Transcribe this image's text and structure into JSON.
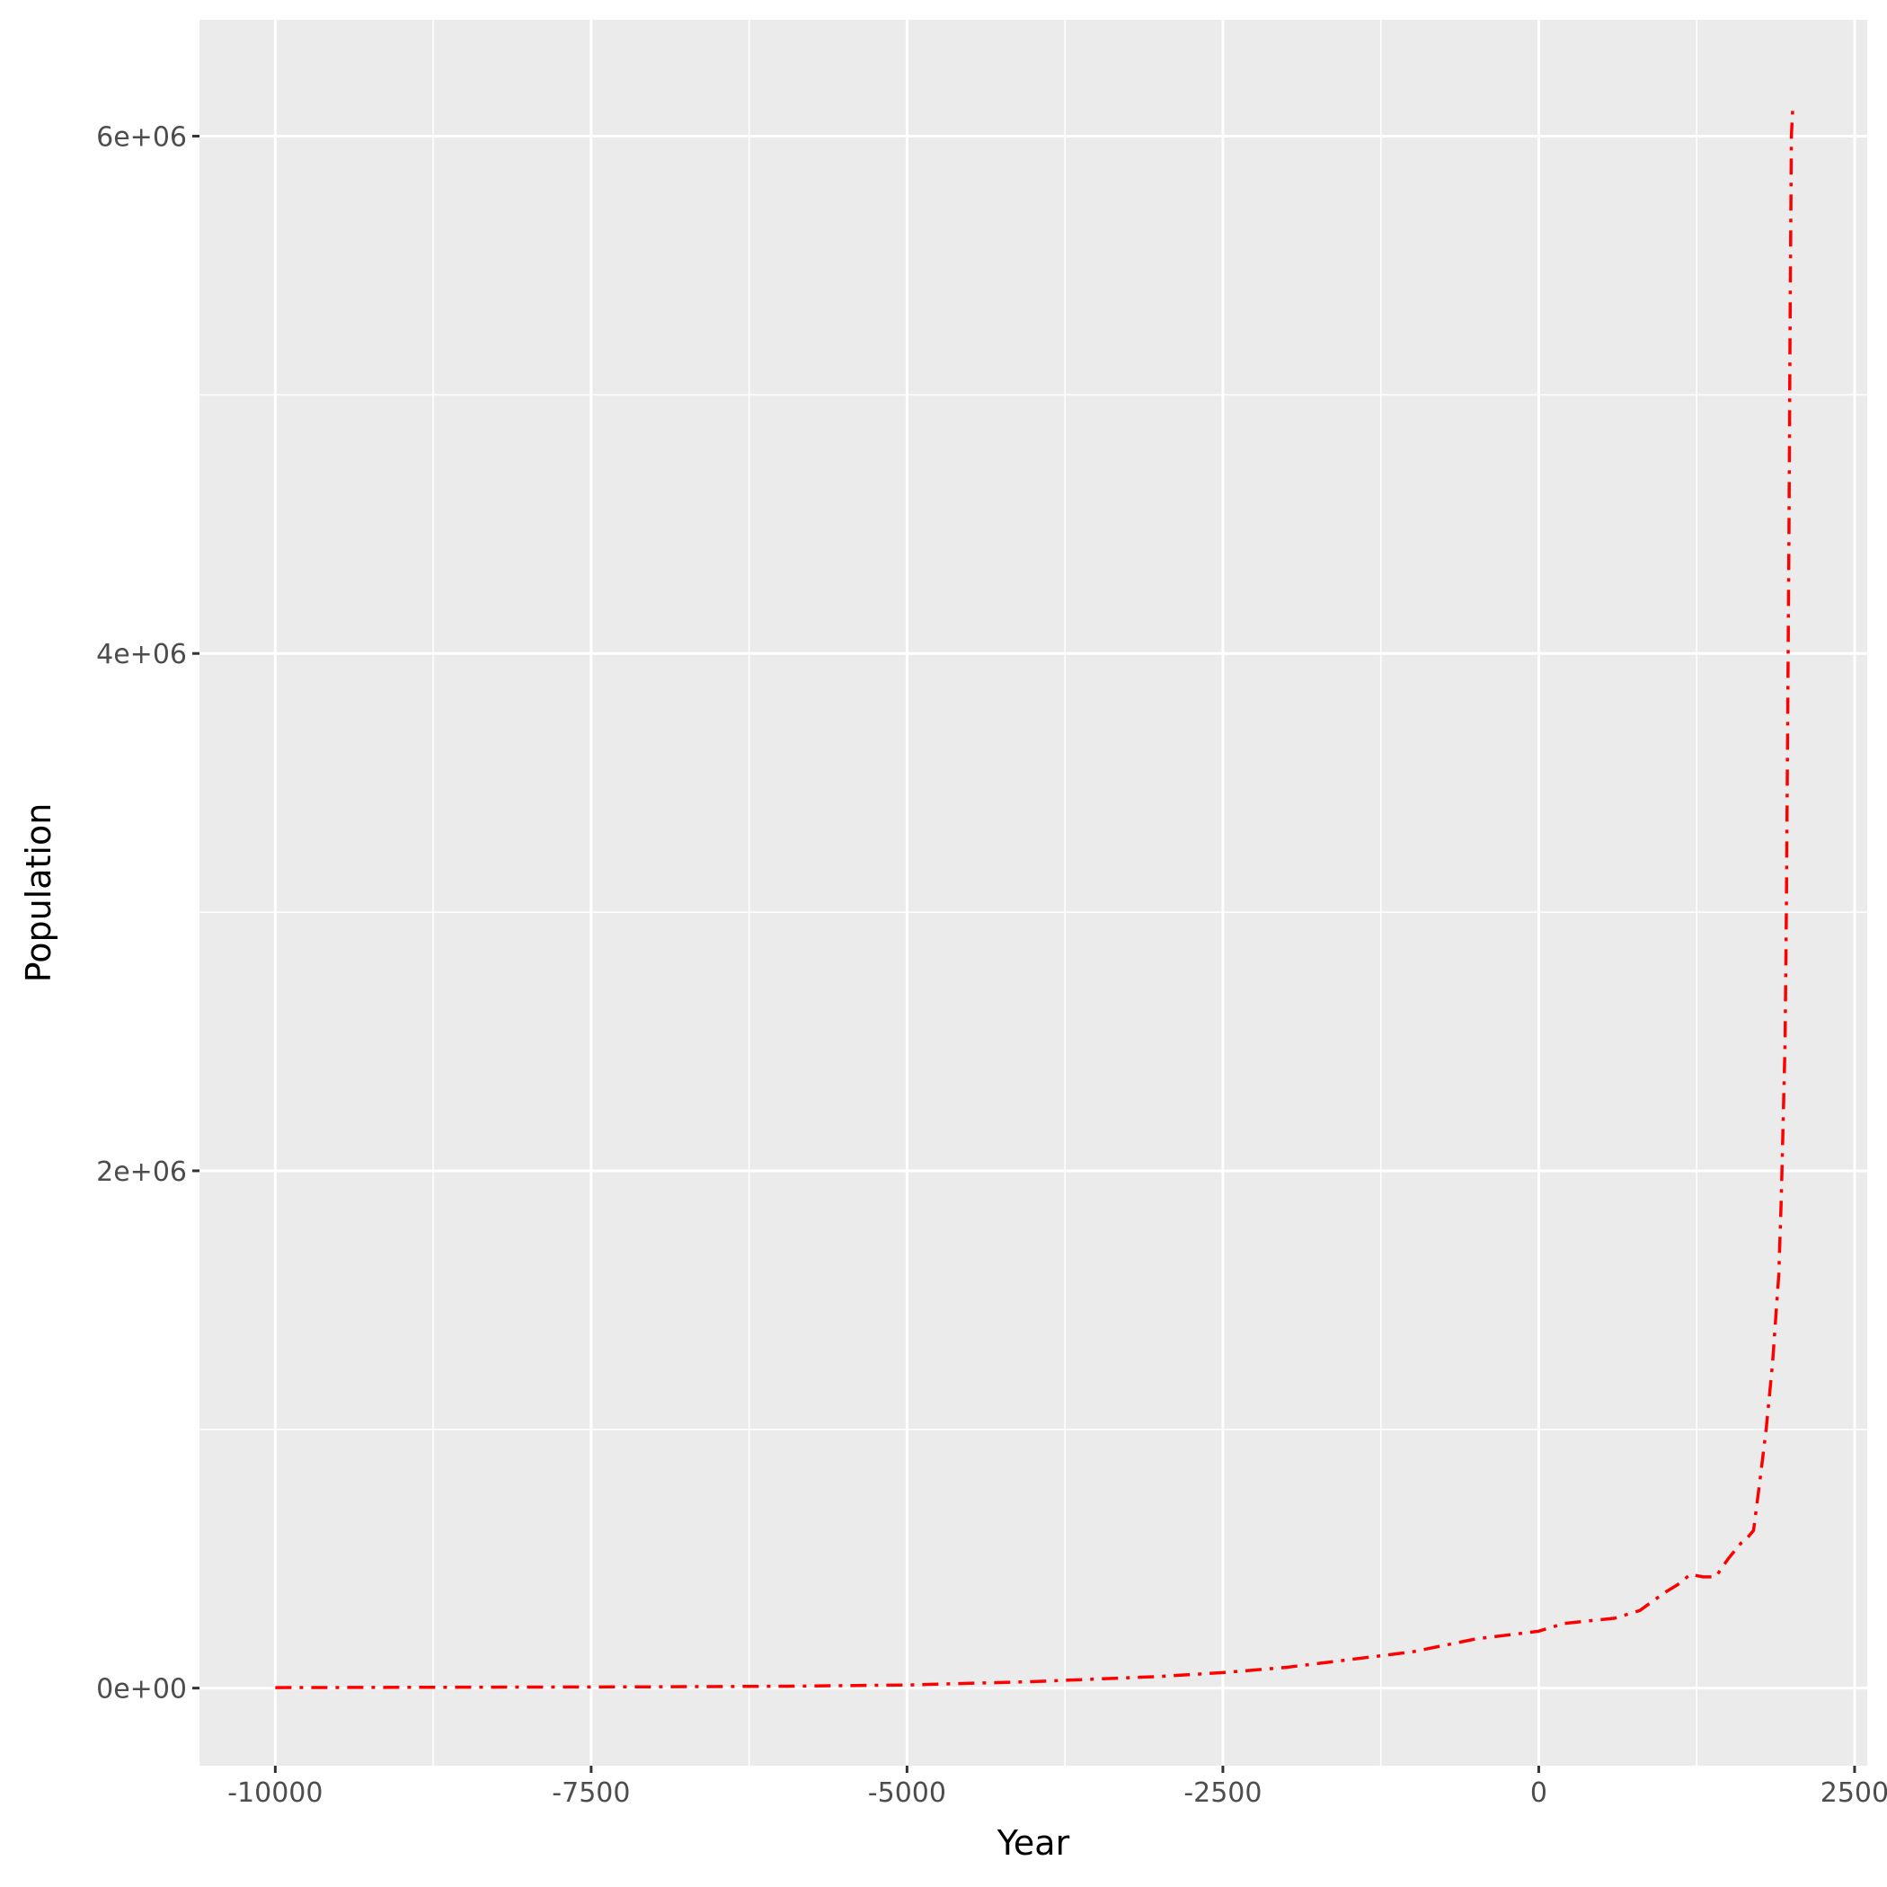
{
  "chart_data": {
    "type": "line",
    "xlabel": "Year",
    "ylabel": "Population",
    "xlim": [
      -10600,
      2600
    ],
    "ylim": [
      -300000,
      6450000
    ],
    "x_ticks": [
      -10000,
      -7500,
      -5000,
      -2500,
      0,
      2500
    ],
    "x_tick_labels": [
      "-10000",
      "-7500",
      "-5000",
      "-2500",
      "0",
      "2500"
    ],
    "y_ticks": [
      0,
      2000000,
      4000000,
      6000000
    ],
    "y_tick_labels": [
      "0e+00",
      "2e+06",
      "4e+06",
      "6e+06"
    ],
    "x_minor_ticks": [
      -8750,
      -6250,
      -3750,
      -1250,
      1250
    ],
    "y_minor_ticks": [
      1000000,
      3000000,
      5000000
    ],
    "grid": true,
    "legend": "none",
    "series": [
      {
        "color": "#ff0000",
        "line_style": "dash-dot",
        "x": [
          -10000,
          -9000,
          -8000,
          -7000,
          -6000,
          -5000,
          -4000,
          -3000,
          -2500,
          -2000,
          -1500,
          -1000,
          -500,
          0,
          200,
          400,
          600,
          800,
          1000,
          1100,
          1200,
          1300,
          1400,
          1500,
          1600,
          1650,
          1700,
          1750,
          1800,
          1850,
          1900,
          1920,
          1940,
          1950,
          1960,
          1970,
          1980,
          1990,
          2000,
          2010
        ],
        "y": [
          2000,
          3000,
          4000,
          5000,
          7000,
          12000,
          25000,
          45000,
          60000,
          80000,
          110000,
          140000,
          190000,
          220000,
          250000,
          260000,
          270000,
          300000,
          370000,
          400000,
          440000,
          430000,
          430000,
          500000,
          560000,
          580000,
          610000,
          800000,
          1000000,
          1250000,
          1600000,
          1900000,
          2300000,
          2500000,
          3000000,
          3700000,
          4400000,
          5300000,
          6000000,
          6100000
        ]
      }
    ]
  }
}
